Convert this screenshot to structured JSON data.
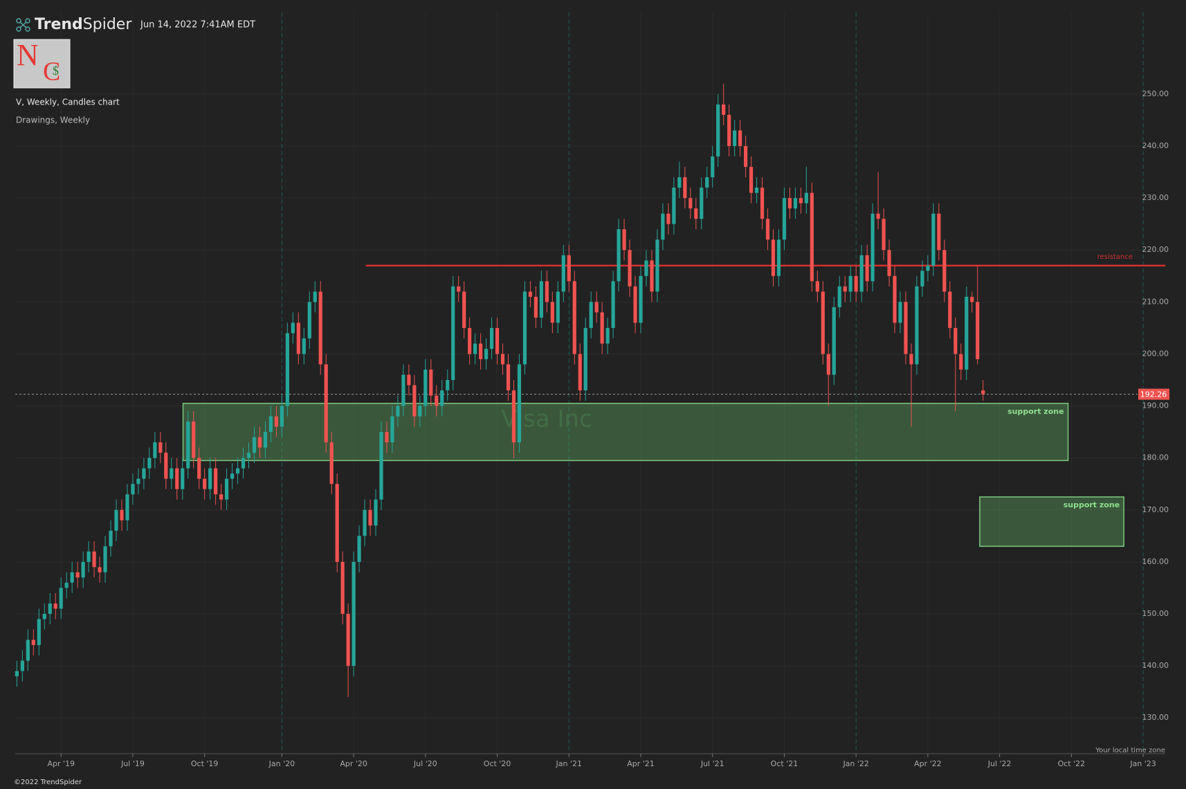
{
  "brand": {
    "bold": "Trend",
    "light": "Spider"
  },
  "timestamp": "Jun 14, 2022 7:41AM EDT",
  "logo": {
    "letters": [
      "N",
      "C",
      "$"
    ]
  },
  "footer": "©2022 TrendSpider",
  "timezone_note": "Your local time zone",
  "chart_data": {
    "type": "candlestick",
    "title": "V, Weekly, Candles chart",
    "subtitle": "Drawings, Weekly",
    "watermark": "Visa Inc",
    "up_color": "#26a69a",
    "down_color": "#ef5350",
    "open": [
      138,
      139,
      141,
      145,
      144,
      149,
      150,
      152,
      151,
      155,
      156,
      158,
      157,
      160,
      162,
      159,
      158,
      163,
      166,
      170,
      168,
      173,
      175,
      176,
      178,
      180,
      183,
      181,
      176,
      178,
      174,
      178,
      187,
      180,
      176,
      174,
      178,
      173,
      172,
      176,
      177,
      178,
      180,
      181,
      184,
      182,
      185,
      188,
      186,
      190,
      204,
      206,
      200,
      203,
      210,
      212,
      198,
      183,
      175,
      160,
      150,
      140,
      160,
      165,
      170,
      167,
      172,
      185,
      183,
      188,
      190,
      196,
      194,
      188,
      190,
      197,
      192,
      190,
      193,
      195,
      213,
      212,
      205,
      200,
      202,
      199,
      201,
      205,
      200,
      198,
      193,
      183,
      198,
      212,
      211,
      207,
      214,
      210,
      206,
      212,
      219,
      214,
      200,
      193,
      205,
      210,
      208,
      202,
      205,
      214,
      224,
      220,
      213,
      206,
      215,
      218,
      212,
      222,
      227,
      225,
      232,
      234,
      230,
      228,
      226,
      232,
      234,
      238,
      248,
      246,
      240,
      243,
      240,
      236,
      231,
      232,
      226,
      222,
      215,
      222,
      230,
      228,
      230,
      229,
      231,
      214,
      212,
      200,
      196,
      209,
      213,
      212,
      215,
      212,
      219,
      214,
      227,
      226,
      220,
      215,
      206,
      210,
      200,
      198,
      213,
      216,
      217,
      227,
      220,
      212,
      205,
      200,
      197,
      211,
      210,
      193
    ],
    "high": [
      141,
      143,
      147,
      147,
      151,
      152,
      154,
      154,
      157,
      158,
      160,
      160,
      162,
      164,
      164,
      161,
      165,
      168,
      172,
      172,
      175,
      177,
      178,
      180,
      182,
      185,
      185,
      183,
      180,
      180,
      180,
      189,
      189,
      182,
      178,
      180,
      180,
      175,
      178,
      179,
      180,
      182,
      183,
      186,
      186,
      187,
      190,
      190,
      192,
      206,
      208,
      208,
      205,
      212,
      214,
      214,
      200,
      185,
      177,
      162,
      152,
      162,
      167,
      172,
      172,
      174,
      187,
      187,
      190,
      192,
      198,
      198,
      196,
      192,
      199,
      199,
      194,
      195,
      197,
      215,
      215,
      214,
      207,
      204,
      204,
      203,
      207,
      207,
      202,
      200,
      195,
      200,
      214,
      214,
      213,
      216,
      216,
      212,
      214,
      221,
      221,
      216,
      202,
      207,
      212,
      212,
      210,
      207,
      216,
      226,
      226,
      222,
      215,
      217,
      220,
      220,
      224,
      229,
      229,
      234,
      237,
      236,
      232,
      230,
      234,
      236,
      240,
      250,
      252,
      248,
      245,
      245,
      242,
      238,
      234,
      234,
      228,
      224,
      224,
      232,
      232,
      232,
      232,
      236,
      233,
      216,
      214,
      202,
      211,
      215,
      215,
      217,
      217,
      221,
      221,
      229,
      235,
      228,
      222,
      217,
      212,
      212,
      202,
      215,
      218,
      219,
      229,
      229,
      222,
      214,
      207,
      202,
      213,
      212,
      217,
      195
    ],
    "low": [
      136,
      137,
      139,
      142,
      142,
      147,
      148,
      149,
      149,
      153,
      154,
      155,
      155,
      158,
      157,
      156,
      156,
      161,
      164,
      166,
      166,
      171,
      173,
      174,
      176,
      178,
      179,
      174,
      174,
      172,
      172,
      176,
      178,
      174,
      172,
      172,
      171,
      170,
      170,
      174,
      175,
      176,
      178,
      179,
      180,
      180,
      183,
      184,
      184,
      188,
      202,
      198,
      198,
      201,
      208,
      196,
      181,
      173,
      158,
      148,
      134,
      138,
      158,
      163,
      165,
      165,
      170,
      181,
      181,
      186,
      188,
      192,
      186,
      186,
      188,
      190,
      188,
      188,
      191,
      193,
      210,
      203,
      198,
      198,
      197,
      197,
      199,
      198,
      196,
      191,
      180,
      181,
      196,
      209,
      205,
      205,
      208,
      204,
      204,
      210,
      212,
      198,
      191,
      191,
      203,
      206,
      200,
      200,
      203,
      212,
      218,
      211,
      204,
      204,
      213,
      210,
      210,
      220,
      223,
      223,
      230,
      228,
      226,
      224,
      224,
      230,
      232,
      236,
      244,
      238,
      238,
      238,
      234,
      229,
      229,
      224,
      220,
      213,
      213,
      220,
      226,
      226,
      227,
      227,
      212,
      210,
      198,
      190,
      194,
      207,
      210,
      210,
      210,
      210,
      212,
      212,
      224,
      218,
      213,
      204,
      204,
      198,
      186,
      196,
      211,
      214,
      215,
      218,
      210,
      203,
      189,
      195,
      195,
      208,
      198,
      191
    ],
    "close": [
      139,
      141,
      145,
      144,
      149,
      150,
      152,
      151,
      155,
      156,
      158,
      157,
      160,
      162,
      159,
      158,
      163,
      166,
      170,
      168,
      173,
      175,
      176,
      178,
      180,
      183,
      181,
      176,
      178,
      174,
      178,
      187,
      180,
      176,
      174,
      178,
      173,
      172,
      176,
      177,
      178,
      180,
      181,
      184,
      182,
      185,
      188,
      186,
      190,
      204,
      206,
      200,
      203,
      210,
      212,
      198,
      183,
      175,
      160,
      150,
      140,
      160,
      165,
      170,
      167,
      172,
      185,
      183,
      188,
      190,
      196,
      194,
      188,
      190,
      197,
      192,
      190,
      193,
      195,
      213,
      212,
      205,
      200,
      202,
      199,
      201,
      205,
      200,
      198,
      193,
      183,
      198,
      212,
      211,
      207,
      214,
      210,
      206,
      212,
      219,
      214,
      200,
      193,
      205,
      210,
      208,
      202,
      205,
      214,
      224,
      220,
      213,
      206,
      215,
      218,
      212,
      222,
      227,
      225,
      232,
      234,
      230,
      228,
      226,
      232,
      234,
      238,
      248,
      246,
      240,
      243,
      240,
      236,
      231,
      232,
      226,
      222,
      215,
      222,
      230,
      228,
      230,
      229,
      231,
      214,
      212,
      200,
      196,
      209,
      213,
      212,
      215,
      212,
      219,
      214,
      227,
      226,
      220,
      215,
      206,
      210,
      200,
      198,
      213,
      216,
      217,
      227,
      220,
      212,
      205,
      200,
      197,
      211,
      210,
      199,
      192.26
    ],
    "last_price": 192.26,
    "xlim": [
      -0.3,
      208
    ],
    "xticks": [
      {
        "value": 8,
        "label": "Apr '19"
      },
      {
        "value": 21,
        "label": "Jul '19"
      },
      {
        "value": 34,
        "label": "Oct '19"
      },
      {
        "value": 48,
        "label": "Jan '20"
      },
      {
        "value": 61,
        "label": "Apr '20"
      },
      {
        "value": 74,
        "label": "Jul '20"
      },
      {
        "value": 87,
        "label": "Oct '20"
      },
      {
        "value": 100,
        "label": "Jan '21"
      },
      {
        "value": 113,
        "label": "Apr '21"
      },
      {
        "value": 126,
        "label": "Jul '21"
      },
      {
        "value": 139,
        "label": "Oct '21"
      },
      {
        "value": 152,
        "label": "Jan '22"
      },
      {
        "value": 165,
        "label": "Apr '22"
      },
      {
        "value": 178,
        "label": "Jul '22"
      },
      {
        "value": 191,
        "label": "Oct '22"
      },
      {
        "value": 204,
        "label": "Jan '23"
      }
    ],
    "ylim": [
      123.1,
      268.1
    ],
    "yticks": [
      {
        "value": 130,
        "label": "130.00"
      },
      {
        "value": 140,
        "label": "140.00"
      },
      {
        "value": 150,
        "label": "150.00"
      },
      {
        "value": 160,
        "label": "160.00"
      },
      {
        "value": 170,
        "label": "170.00"
      },
      {
        "value": 180,
        "label": "180.00"
      },
      {
        "value": 190,
        "label": "190.00"
      },
      {
        "value": 200,
        "label": "200.00"
      },
      {
        "value": 210,
        "label": "210.00"
      },
      {
        "value": 220,
        "label": "220.00"
      },
      {
        "value": 230,
        "label": "230.00"
      },
      {
        "value": 240,
        "label": "240.00"
      },
      {
        "value": 250,
        "label": "250.00"
      }
    ],
    "resistance": {
      "label": "resistance",
      "value": 217,
      "from": 63.2,
      "color": "#d32f2f"
    },
    "zones": [
      {
        "label": "support zone",
        "low": 179.5,
        "high": 190.5,
        "from": 30.1,
        "to": 190.4
      },
      {
        "label": "support zone",
        "low": 163,
        "high": 172.5,
        "from": 174.4,
        "to": 200.5
      }
    ]
  }
}
